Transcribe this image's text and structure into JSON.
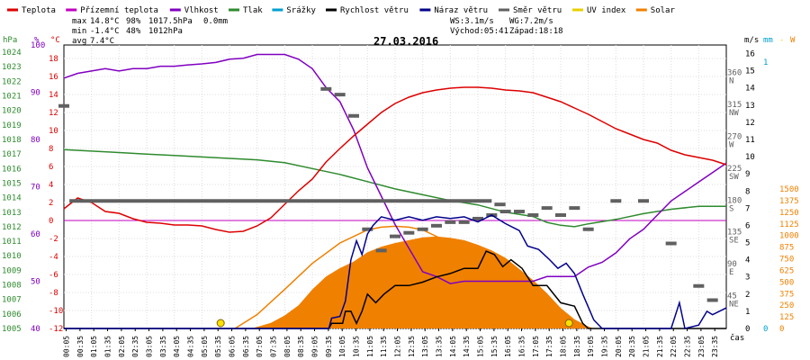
{
  "chart_data": {
    "type": "line",
    "title": "27.03.2016",
    "legend": {
      "placement": "top",
      "items": [
        {
          "key": "temp",
          "label": "Teplota",
          "color": "#dd0000"
        },
        {
          "key": "feels",
          "label": "Přízemní teplota",
          "color": "#c000c0"
        },
        {
          "key": "humidity",
          "label": "Vlhkost",
          "color": "#8000c0"
        },
        {
          "key": "pressure",
          "label": "Tlak",
          "color": "#2e8b2e"
        },
        {
          "key": "rain",
          "label": "Srážky",
          "color": "#00a0d0"
        },
        {
          "key": "windspeed",
          "label": "Rychlost větru",
          "color": "#000000"
        },
        {
          "key": "gust",
          "label": "Náraz větru",
          "color": "#00008b"
        },
        {
          "key": "winddir",
          "label": "Směr větru",
          "color": "#606060"
        },
        {
          "key": "uv",
          "label": "UV index",
          "color": "#e8d000"
        },
        {
          "key": "solar",
          "label": "Solar",
          "color": "#f08000"
        }
      ]
    },
    "stats": {
      "max_label": "max",
      "max_temp": "14.8°C",
      "max_hum": "98%",
      "max_press": "1017.5hPa",
      "rain_total": "0.0mm",
      "min_label": "min",
      "min_temp": "-1.4°C",
      "min_hum": "48%",
      "min_press": "1012hPa",
      "avg_label": "avg",
      "avg_temp": "7.4°C",
      "ws": "WS:3.1m/s",
      "wg": "WG:7.2m/s",
      "sunrise": "Východ:05:41",
      "sunset": "Západ:18:18"
    },
    "axes": {
      "hpa": {
        "unit": "hPa",
        "ticks": [
          "1024",
          "1023",
          "1022",
          "1021",
          "1020",
          "1019",
          "1018",
          "1017",
          "1016",
          "1015",
          "1014",
          "1013",
          "1012",
          "1011",
          "1010",
          "1009",
          "1008",
          "1007",
          "1006",
          "1005"
        ],
        "range": [
          1005,
          1024.5
        ]
      },
      "percent": {
        "unit": "%",
        "ticks": [
          "100",
          "90",
          "80",
          "70",
          "60",
          "50",
          "40"
        ],
        "range": [
          40,
          100
        ]
      },
      "celsius": {
        "unit": "°C",
        "ticks": [
          "18",
          "16",
          "14",
          "12",
          "10",
          "8",
          "6",
          "4",
          "2",
          "0",
          "-2",
          "-4",
          "-6",
          "-8",
          "-10",
          "-12"
        ],
        "range": [
          -12,
          19.5
        ]
      },
      "dir": {
        "ticks": [
          {
            "v": "360",
            "d": "N",
            "val": 360
          },
          {
            "v": "315",
            "d": "NW",
            "val": 315
          },
          {
            "v": "270",
            "d": "W",
            "val": 270
          },
          {
            "v": "225",
            "d": "SW",
            "val": 225
          },
          {
            "v": "180",
            "d": "S",
            "val": 180
          },
          {
            "v": "135",
            "d": "SE",
            "val": 135
          },
          {
            "v": "90",
            "d": "E",
            "val": 90
          },
          {
            "v": "45",
            "d": "NE",
            "val": 45
          }
        ],
        "range": [
          0,
          400
        ]
      },
      "ms": {
        "unit": "m/s",
        "ticks": [
          "16",
          "15",
          "14",
          "13",
          "12",
          "11",
          "10",
          "9",
          "8",
          "7",
          "6",
          "5",
          "4",
          "3",
          "2",
          "1",
          "0"
        ],
        "range": [
          0,
          16.5
        ]
      },
      "mm": {
        "unit": "mm",
        "ticks": [
          "1",
          "0"
        ]
      },
      "uv_unit": "-",
      "w": {
        "unit": "W",
        "ticks": [
          "1500",
          "1375",
          "1250",
          "1125",
          "1000",
          "875",
          "750",
          "625",
          "500",
          "375",
          "250",
          "125",
          "0"
        ],
        "range": [
          0,
          3050
        ]
      },
      "x_label": "čas",
      "x_ticks": [
        "00:05",
        "00:35",
        "01:05",
        "01:35",
        "02:05",
        "02:35",
        "03:05",
        "03:35",
        "04:05",
        "04:35",
        "05:05",
        "05:35",
        "06:05",
        "06:35",
        "07:05",
        "07:35",
        "08:05",
        "08:35",
        "09:05",
        "09:35",
        "10:05",
        "10:35",
        "11:05",
        "11:35",
        "12:05",
        "12:35",
        "13:05",
        "13:35",
        "14:05",
        "14:35",
        "15:05",
        "15:35",
        "16:05",
        "16:35",
        "17:05",
        "17:35",
        "18:05",
        "18:35",
        "19:05",
        "19:35",
        "20:05",
        "20:35",
        "21:05",
        "21:35",
        "22:05",
        "22:35",
        "23:05",
        "23:35"
      ],
      "x_range": [
        0,
        24
      ]
    },
    "series": {
      "temp": [
        [
          0,
          1.3
        ],
        [
          0.5,
          2.5
        ],
        [
          1,
          2.0
        ],
        [
          1.5,
          1.0
        ],
        [
          2,
          0.8
        ],
        [
          2.5,
          0.2
        ],
        [
          3,
          -0.2
        ],
        [
          3.5,
          -0.3
        ],
        [
          4,
          -0.5
        ],
        [
          4.5,
          -0.5
        ],
        [
          5,
          -0.6
        ],
        [
          5.5,
          -1.0
        ],
        [
          6,
          -1.3
        ],
        [
          6.5,
          -1.2
        ],
        [
          7,
          -0.6
        ],
        [
          7.5,
          0.3
        ],
        [
          8,
          1.8
        ],
        [
          8.5,
          3.3
        ],
        [
          9,
          4.6
        ],
        [
          9.5,
          6.5
        ],
        [
          10,
          8.0
        ],
        [
          10.5,
          9.4
        ],
        [
          11,
          10.7
        ],
        [
          11.5,
          12.0
        ],
        [
          12,
          13.0
        ],
        [
          12.5,
          13.7
        ],
        [
          13,
          14.2
        ],
        [
          13.5,
          14.5
        ],
        [
          14,
          14.7
        ],
        [
          14.5,
          14.8
        ],
        [
          15,
          14.8
        ],
        [
          15.5,
          14.7
        ],
        [
          16,
          14.5
        ],
        [
          16.5,
          14.4
        ],
        [
          17,
          14.2
        ],
        [
          17.5,
          13.7
        ],
        [
          18,
          13.2
        ],
        [
          18.5,
          12.5
        ],
        [
          19,
          11.8
        ],
        [
          19.5,
          11.0
        ],
        [
          20,
          10.2
        ],
        [
          20.5,
          9.6
        ],
        [
          21,
          9.0
        ],
        [
          21.5,
          8.6
        ],
        [
          22,
          7.8
        ],
        [
          22.5,
          7.3
        ],
        [
          23,
          7.0
        ],
        [
          23.5,
          6.7
        ],
        [
          24,
          6.2
        ]
      ],
      "humidity": [
        [
          0,
          93
        ],
        [
          0.5,
          94
        ],
        [
          1,
          94.5
        ],
        [
          1.5,
          95
        ],
        [
          2,
          94.5
        ],
        [
          2.5,
          95
        ],
        [
          3,
          95
        ],
        [
          3.5,
          95.5
        ],
        [
          4,
          95.5
        ],
        [
          4.5,
          95.8
        ],
        [
          5,
          96
        ],
        [
          5.5,
          96.3
        ],
        [
          6,
          97
        ],
        [
          6.5,
          97.2
        ],
        [
          7,
          98
        ],
        [
          7.5,
          98
        ],
        [
          8,
          98
        ],
        [
          8.5,
          97
        ],
        [
          9,
          95
        ],
        [
          9.5,
          91
        ],
        [
          10,
          88
        ],
        [
          10.5,
          82
        ],
        [
          11,
          74
        ],
        [
          11.5,
          68
        ],
        [
          12,
          62
        ],
        [
          12.5,
          57
        ],
        [
          13,
          52
        ],
        [
          13.5,
          51
        ],
        [
          14,
          49.5
        ],
        [
          14.5,
          50
        ],
        [
          15,
          50
        ],
        [
          15.5,
          50
        ],
        [
          16,
          50
        ],
        [
          16.5,
          50
        ],
        [
          17,
          50
        ],
        [
          17.5,
          51
        ],
        [
          18,
          51
        ],
        [
          18.5,
          51
        ],
        [
          19,
          53
        ],
        [
          19.5,
          54
        ],
        [
          20,
          56
        ],
        [
          20.5,
          59
        ],
        [
          21,
          61
        ],
        [
          21.5,
          64
        ],
        [
          22,
          67
        ],
        [
          22.5,
          69
        ],
        [
          23,
          71
        ],
        [
          23.5,
          73
        ],
        [
          24,
          75
        ]
      ],
      "pressure": [
        [
          0,
          1017.3
        ],
        [
          1,
          1017.2
        ],
        [
          2,
          1017.1
        ],
        [
          3,
          1017.0
        ],
        [
          4,
          1016.9
        ],
        [
          5,
          1016.8
        ],
        [
          6,
          1016.7
        ],
        [
          7,
          1016.6
        ],
        [
          8,
          1016.4
        ],
        [
          9,
          1016.0
        ],
        [
          10,
          1015.6
        ],
        [
          11,
          1015.1
        ],
        [
          12,
          1014.6
        ],
        [
          13,
          1014.2
        ],
        [
          14,
          1013.8
        ],
        [
          15,
          1013.5
        ],
        [
          16,
          1013.0
        ],
        [
          17,
          1012.7
        ],
        [
          17.5,
          1012.3
        ],
        [
          18,
          1012.1
        ],
        [
          18.5,
          1012.0
        ],
        [
          19,
          1012.2
        ],
        [
          20,
          1012.5
        ],
        [
          21,
          1012.9
        ],
        [
          22,
          1013.2
        ],
        [
          23,
          1013.4
        ],
        [
          24,
          1013.4
        ]
      ],
      "windspeed": [
        [
          0,
          0
        ],
        [
          9.6,
          0
        ],
        [
          9.7,
          0.3
        ],
        [
          10.1,
          0.3
        ],
        [
          10.2,
          1.0
        ],
        [
          10.4,
          1.0
        ],
        [
          10.6,
          0.3
        ],
        [
          10.8,
          1.0
        ],
        [
          11,
          2.0
        ],
        [
          11.3,
          1.5
        ],
        [
          11.6,
          2.0
        ],
        [
          12,
          2.5
        ],
        [
          12.5,
          2.5
        ],
        [
          13,
          2.7
        ],
        [
          13.5,
          3.0
        ],
        [
          14,
          3.2
        ],
        [
          14.5,
          3.5
        ],
        [
          15,
          3.5
        ],
        [
          15.3,
          4.5
        ],
        [
          15.6,
          4.3
        ],
        [
          15.9,
          3.6
        ],
        [
          16.2,
          4.0
        ],
        [
          16.6,
          3.5
        ],
        [
          17,
          2.5
        ],
        [
          17.5,
          2.5
        ],
        [
          18,
          1.5
        ],
        [
          18.5,
          1.3
        ],
        [
          18.8,
          0.3
        ],
        [
          19,
          0
        ],
        [
          24,
          0
        ]
      ],
      "gust": [
        [
          0,
          0
        ],
        [
          9.6,
          0
        ],
        [
          9.7,
          0.6
        ],
        [
          10,
          0.7
        ],
        [
          10.2,
          1.6
        ],
        [
          10.4,
          4.0
        ],
        [
          10.6,
          5.1
        ],
        [
          10.8,
          4.3
        ],
        [
          11,
          5.5
        ],
        [
          11.2,
          6.0
        ],
        [
          11.5,
          6.5
        ],
        [
          12,
          6.3
        ],
        [
          12.5,
          6.5
        ],
        [
          13,
          6.3
        ],
        [
          13.5,
          6.5
        ],
        [
          14,
          6.4
        ],
        [
          14.5,
          6.5
        ],
        [
          15,
          6.2
        ],
        [
          15.5,
          6.6
        ],
        [
          16,
          6.1
        ],
        [
          16.5,
          5.7
        ],
        [
          16.8,
          4.8
        ],
        [
          17.2,
          4.6
        ],
        [
          17.6,
          4.0
        ],
        [
          17.9,
          3.5
        ],
        [
          18.2,
          3.8
        ],
        [
          18.5,
          3.2
        ],
        [
          18.8,
          2.0
        ],
        [
          19.2,
          0.5
        ],
        [
          19.5,
          0
        ],
        [
          22,
          0
        ],
        [
          22.3,
          1.5
        ],
        [
          22.5,
          0
        ],
        [
          23,
          0.2
        ],
        [
          23.3,
          1.0
        ],
        [
          23.5,
          0.8
        ],
        [
          24,
          1.2
        ]
      ],
      "solar_area": [
        [
          6.8,
          0
        ],
        [
          7.5,
          60
        ],
        [
          8,
          140
        ],
        [
          8.5,
          250
        ],
        [
          9,
          420
        ],
        [
          9.5,
          560
        ],
        [
          10,
          650
        ],
        [
          10.5,
          720
        ],
        [
          11,
          820
        ],
        [
          11.5,
          880
        ],
        [
          12,
          920
        ],
        [
          12.5,
          950
        ],
        [
          13,
          980
        ],
        [
          13.5,
          990
        ],
        [
          14,
          975
        ],
        [
          14.5,
          950
        ],
        [
          15,
          900
        ],
        [
          15.5,
          840
        ],
        [
          16,
          760
        ],
        [
          16.5,
          640
        ],
        [
          17,
          520
        ],
        [
          17.5,
          380
        ],
        [
          18,
          220
        ],
        [
          18.5,
          100
        ],
        [
          19,
          20
        ],
        [
          19.2,
          0
        ]
      ],
      "solar_max_curve": [
        [
          6.2,
          0
        ],
        [
          7,
          150
        ],
        [
          8,
          420
        ],
        [
          9,
          700
        ],
        [
          10,
          920
        ],
        [
          11,
          1060
        ],
        [
          11.5,
          1090
        ],
        [
          12,
          1100
        ],
        [
          12.5,
          1090
        ],
        [
          13,
          1060
        ],
        [
          14,
          920
        ],
        [
          15,
          700
        ],
        [
          16,
          420
        ],
        [
          17,
          200
        ],
        [
          18,
          50
        ],
        [
          18.5,
          0
        ]
      ],
      "winddir_segments": [
        [
          0.2,
          15.5,
          180
        ],
        [
          15.6,
          16.0,
          175
        ]
      ],
      "winddir_points": [
        [
          0,
          314
        ],
        [
          9.5,
          338
        ],
        [
          10,
          330
        ],
        [
          10.5,
          300
        ],
        [
          11,
          140
        ],
        [
          11.5,
          110
        ],
        [
          12,
          130
        ],
        [
          12.5,
          135
        ],
        [
          13,
          140
        ],
        [
          13.5,
          145
        ],
        [
          14,
          150
        ],
        [
          14.5,
          150
        ],
        [
          15,
          155
        ],
        [
          15.5,
          160
        ],
        [
          16,
          165
        ],
        [
          16.5,
          165
        ],
        [
          17,
          160
        ],
        [
          17.5,
          170
        ],
        [
          18,
          160
        ],
        [
          18.5,
          170
        ],
        [
          19,
          140
        ],
        [
          20,
          180
        ],
        [
          21,
          180
        ],
        [
          22,
          120
        ],
        [
          23,
          60
        ],
        [
          23.5,
          40
        ]
      ],
      "feels_line": 0
    },
    "markers": {
      "sunrise_hour": 5.68,
      "sunset_hour": 18.3
    }
  }
}
